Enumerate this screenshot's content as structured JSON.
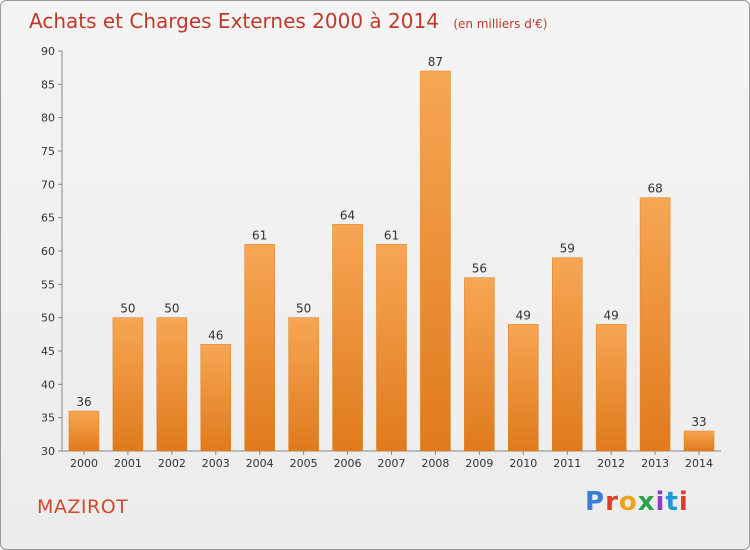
{
  "title": "Achats et Charges Externes 2000 à 2014",
  "unit": "(en milliers d'€)",
  "commune": "MAZIROT",
  "logo_text": "Proxiti",
  "colors": {
    "bar_top": "#f7a654",
    "bar_bottom": "#e07a1c",
    "title": "#c0392b",
    "grid": "#d9d9d9"
  },
  "chart_data": {
    "type": "bar",
    "title": "Achats et Charges Externes 2000 à 2014",
    "xlabel": "",
    "ylabel": "",
    "categories": [
      "2000",
      "2001",
      "2002",
      "2003",
      "2004",
      "2005",
      "2006",
      "2007",
      "2008",
      "2009",
      "2010",
      "2011",
      "2012",
      "2013",
      "2014"
    ],
    "values": [
      36,
      50,
      50,
      46,
      61,
      50,
      64,
      61,
      87,
      56,
      49,
      59,
      49,
      68,
      33
    ],
    "ylim": [
      30,
      90
    ],
    "yticks": [
      30,
      35,
      40,
      45,
      50,
      55,
      60,
      65,
      70,
      75,
      80,
      85,
      90
    ],
    "grid": false,
    "data_labels": true
  }
}
